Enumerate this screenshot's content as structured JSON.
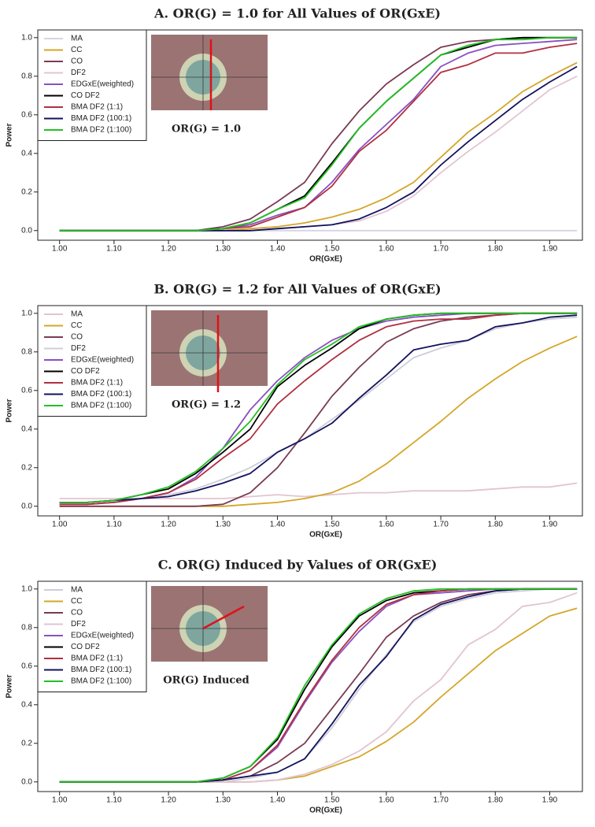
{
  "chart_data": [
    {
      "type": "line",
      "title": "A. OR(G) = 1.0 for All Values of OR(GxE)",
      "inset_label": "OR(G) = 1.0",
      "x_label": "OR(GxE)",
      "y_label": "Power",
      "x": [
        1.0,
        1.05,
        1.1,
        1.15,
        1.2,
        1.25,
        1.3,
        1.35,
        1.4,
        1.45,
        1.5,
        1.55,
        1.6,
        1.65,
        1.7,
        1.75,
        1.8,
        1.85,
        1.9,
        1.95
      ],
      "xlim": [
        0.96,
        1.96
      ],
      "ylim": [
        -0.05,
        1.04
      ],
      "xticks": [
        {
          "value": 1.0,
          "label": "1.00"
        },
        {
          "value": 1.1,
          "label": "1.10"
        },
        {
          "value": 1.2,
          "label": "1.20"
        },
        {
          "value": 1.3,
          "label": "1.30"
        },
        {
          "value": 1.4,
          "label": "1.40"
        },
        {
          "value": 1.5,
          "label": "1.50"
        },
        {
          "value": 1.6,
          "label": "1.60"
        },
        {
          "value": 1.7,
          "label": "1.70"
        },
        {
          "value": 1.8,
          "label": "1.80"
        },
        {
          "value": 1.9,
          "label": "1.90"
        }
      ],
      "yticks": [
        {
          "value": 0,
          "label": "0.0"
        },
        {
          "value": 0.2,
          "label": "0.2"
        },
        {
          "value": 0.4,
          "label": "0.4"
        },
        {
          "value": 0.6,
          "label": "0.6"
        },
        {
          "value": 0.8,
          "label": "0.8"
        },
        {
          "value": 1,
          "label": "1.0"
        }
      ],
      "legend": "top-left",
      "series": [
        {
          "name": "MA",
          "color": "#d6d4e4",
          "values": [
            0,
            0,
            0,
            0,
            0,
            0,
            0,
            0,
            0,
            0,
            0,
            0,
            0,
            0,
            0,
            0,
            0,
            0,
            0,
            0
          ]
        },
        {
          "name": "CC",
          "color": "#d4a628",
          "values": [
            0,
            0,
            0,
            0,
            0,
            0,
            0,
            0.01,
            0.02,
            0.04,
            0.07,
            0.11,
            0.17,
            0.25,
            0.38,
            0.51,
            0.61,
            0.72,
            0.8,
            0.87
          ]
        },
        {
          "name": "CO",
          "color": "#7a3a55",
          "values": [
            0,
            0,
            0,
            0,
            0,
            0,
            0.02,
            0.06,
            0.15,
            0.25,
            0.45,
            0.62,
            0.76,
            0.86,
            0.95,
            0.98,
            0.99,
            1,
            1,
            1
          ]
        },
        {
          "name": "DF2",
          "color": "#e2c4d2",
          "values": [
            0,
            0,
            0,
            0,
            0,
            0,
            0,
            0,
            0.01,
            0.02,
            0.03,
            0.05,
            0.1,
            0.18,
            0.3,
            0.41,
            0.51,
            0.62,
            0.73,
            0.8
          ]
        },
        {
          "name": "EDGxE(weighted)",
          "color": "#8a50c0",
          "values": [
            0,
            0,
            0,
            0,
            0,
            0,
            0.01,
            0.03,
            0.08,
            0.12,
            0.25,
            0.42,
            0.55,
            0.68,
            0.85,
            0.92,
            0.96,
            0.97,
            0.98,
            0.99
          ]
        },
        {
          "name": "CO DF2",
          "color": "#000000",
          "values": [
            0,
            0,
            0,
            0,
            0,
            0,
            0.01,
            0.04,
            0.11,
            0.18,
            0.35,
            0.53,
            0.67,
            0.79,
            0.91,
            0.95,
            0.99,
            1,
            1,
            1
          ]
        },
        {
          "name": "BMA DF2 (1:1)",
          "color": "#b03040",
          "values": [
            0,
            0,
            0,
            0,
            0,
            0,
            0.01,
            0.02,
            0.07,
            0.12,
            0.23,
            0.41,
            0.52,
            0.67,
            0.82,
            0.86,
            0.92,
            0.92,
            0.95,
            0.97
          ]
        },
        {
          "name": "BMA DF2 (100:1)",
          "color": "#12125e",
          "values": [
            0,
            0,
            0,
            0,
            0,
            0,
            0,
            0,
            0.01,
            0.02,
            0.03,
            0.06,
            0.12,
            0.2,
            0.34,
            0.46,
            0.57,
            0.68,
            0.77,
            0.85
          ]
        },
        {
          "name": "BMA DF2 (1:100)",
          "color": "#22c022",
          "values": [
            0,
            0,
            0,
            0,
            0,
            0,
            0.01,
            0.04,
            0.11,
            0.17,
            0.34,
            0.53,
            0.67,
            0.79,
            0.91,
            0.96,
            0.99,
            0.99,
            1,
            1
          ]
        }
      ]
    },
    {
      "type": "line",
      "title": "B. OR(G) = 1.2 for All Values of OR(GxE)",
      "inset_label": "OR(G) = 1.2",
      "x_label": "OR(GxE)",
      "y_label": "Power",
      "x": [
        1.0,
        1.05,
        1.1,
        1.15,
        1.2,
        1.25,
        1.3,
        1.35,
        1.4,
        1.45,
        1.5,
        1.55,
        1.6,
        1.65,
        1.7,
        1.75,
        1.8,
        1.85,
        1.9,
        1.95
      ],
      "xlim": [
        0.96,
        1.96
      ],
      "ylim": [
        -0.05,
        1.04
      ],
      "xticks": [
        {
          "value": 1.0,
          "label": "1.00"
        },
        {
          "value": 1.1,
          "label": "1.10"
        },
        {
          "value": 1.2,
          "label": "1.20"
        },
        {
          "value": 1.3,
          "label": "1.30"
        },
        {
          "value": 1.4,
          "label": "1.40"
        },
        {
          "value": 1.5,
          "label": "1.50"
        },
        {
          "value": 1.6,
          "label": "1.60"
        },
        {
          "value": 1.7,
          "label": "1.70"
        },
        {
          "value": 1.8,
          "label": "1.80"
        },
        {
          "value": 1.9,
          "label": "1.90"
        }
      ],
      "yticks": [
        {
          "value": 0,
          "label": "0.0"
        },
        {
          "value": 0.2,
          "label": "0.2"
        },
        {
          "value": 0.4,
          "label": "0.4"
        },
        {
          "value": 0.6,
          "label": "0.6"
        },
        {
          "value": 0.8,
          "label": "0.8"
        },
        {
          "value": 1,
          "label": "1.0"
        }
      ],
      "legend": "top-left",
      "series": [
        {
          "name": "MA",
          "color": "#e2c4d2",
          "values": [
            0.04,
            0.04,
            0.04,
            0.04,
            0.04,
            0.04,
            0.04,
            0.05,
            0.06,
            0.05,
            0.06,
            0.07,
            0.07,
            0.08,
            0.08,
            0.08,
            0.09,
            0.1,
            0.1,
            0.12
          ]
        },
        {
          "name": "CC",
          "color": "#d4a628",
          "values": [
            0,
            0,
            0,
            0,
            0,
            0,
            0,
            0.01,
            0.02,
            0.04,
            0.07,
            0.13,
            0.22,
            0.33,
            0.44,
            0.56,
            0.66,
            0.75,
            0.82,
            0.88
          ]
        },
        {
          "name": "CO",
          "color": "#7a3a55",
          "values": [
            0,
            0,
            0,
            0,
            0,
            0,
            0.01,
            0.07,
            0.2,
            0.38,
            0.57,
            0.72,
            0.85,
            0.92,
            0.96,
            0.98,
            0.99,
            1,
            1,
            1
          ]
        },
        {
          "name": "DF2",
          "color": "#cfcdd8",
          "values": [
            0.02,
            0.02,
            0.03,
            0.04,
            0.06,
            0.09,
            0.14,
            0.2,
            0.28,
            0.35,
            0.45,
            0.55,
            0.66,
            0.77,
            0.82,
            0.86,
            0.92,
            0.95,
            0.97,
            0.98
          ]
        },
        {
          "name": "EDGxE(weighted)",
          "color": "#8a50c0",
          "values": [
            0.01,
            0.01,
            0.02,
            0.04,
            0.07,
            0.15,
            0.3,
            0.5,
            0.65,
            0.77,
            0.86,
            0.92,
            0.96,
            0.98,
            0.99,
            1,
            1,
            1,
            1,
            1
          ]
        },
        {
          "name": "CO DF2",
          "color": "#000000",
          "values": [
            0.02,
            0.02,
            0.03,
            0.06,
            0.09,
            0.17,
            0.28,
            0.4,
            0.62,
            0.73,
            0.82,
            0.92,
            0.97,
            0.99,
            1,
            1,
            1,
            1,
            1,
            1
          ]
        },
        {
          "name": "BMA DF2 (1:1)",
          "color": "#b03040",
          "values": [
            0.01,
            0.01,
            0.02,
            0.04,
            0.07,
            0.14,
            0.25,
            0.35,
            0.53,
            0.65,
            0.76,
            0.86,
            0.93,
            0.96,
            0.97,
            0.97,
            0.99,
            1,
            1,
            1
          ]
        },
        {
          "name": "BMA DF2 (100:1)",
          "color": "#12125e",
          "values": [
            0.02,
            0.02,
            0.03,
            0.04,
            0.05,
            0.08,
            0.12,
            0.17,
            0.28,
            0.35,
            0.43,
            0.56,
            0.68,
            0.81,
            0.84,
            0.86,
            0.93,
            0.95,
            0.98,
            0.99
          ]
        },
        {
          "name": "BMA DF2 (1:100)",
          "color": "#22c022",
          "values": [
            0.02,
            0.02,
            0.03,
            0.06,
            0.1,
            0.18,
            0.3,
            0.44,
            0.63,
            0.76,
            0.84,
            0.93,
            0.97,
            0.99,
            1,
            1,
            1,
            1,
            1,
            1
          ]
        }
      ]
    },
    {
      "type": "line",
      "title": "C. OR(G) Induced by Values of OR(GxE)",
      "inset_label": "OR(G) Induced",
      "x_label": "OR(GxE)",
      "y_label": "Power",
      "x": [
        1.0,
        1.05,
        1.1,
        1.15,
        1.2,
        1.25,
        1.3,
        1.35,
        1.4,
        1.45,
        1.5,
        1.55,
        1.6,
        1.65,
        1.7,
        1.75,
        1.8,
        1.85,
        1.9,
        1.95
      ],
      "xlim": [
        0.96,
        1.96
      ],
      "ylim": [
        -0.05,
        1.04
      ],
      "xticks": [
        {
          "value": 1.0,
          "label": "1.00"
        },
        {
          "value": 1.1,
          "label": "1.10"
        },
        {
          "value": 1.2,
          "label": "1.20"
        },
        {
          "value": 1.3,
          "label": "1.30"
        },
        {
          "value": 1.4,
          "label": "1.40"
        },
        {
          "value": 1.5,
          "label": "1.50"
        },
        {
          "value": 1.6,
          "label": "1.60"
        },
        {
          "value": 1.7,
          "label": "1.70"
        },
        {
          "value": 1.8,
          "label": "1.80"
        },
        {
          "value": 1.9,
          "label": "1.90"
        }
      ],
      "yticks": [
        {
          "value": 0,
          "label": "0.0"
        },
        {
          "value": 0.2,
          "label": "0.2"
        },
        {
          "value": 0.4,
          "label": "0.4"
        },
        {
          "value": 0.6,
          "label": "0.6"
        },
        {
          "value": 0.8,
          "label": "0.8"
        },
        {
          "value": 1,
          "label": "1.0"
        }
      ],
      "legend": "top-left",
      "series": [
        {
          "name": "MA",
          "color": "#cfcdd8",
          "values": [
            0,
            0,
            0,
            0,
            0,
            0,
            0,
            0.02,
            0.05,
            0.12,
            0.28,
            0.48,
            0.66,
            0.83,
            0.91,
            0.95,
            0.98,
            0.99,
            1,
            1
          ]
        },
        {
          "name": "CC",
          "color": "#d4a628",
          "values": [
            0,
            0,
            0,
            0,
            0,
            0,
            0,
            0,
            0.01,
            0.03,
            0.08,
            0.13,
            0.21,
            0.31,
            0.44,
            0.56,
            0.68,
            0.77,
            0.86,
            0.9
          ]
        },
        {
          "name": "CO",
          "color": "#7a3a55",
          "values": [
            0,
            0,
            0,
            0,
            0,
            0,
            0.01,
            0.03,
            0.1,
            0.2,
            0.38,
            0.56,
            0.75,
            0.86,
            0.93,
            0.97,
            0.99,
            1,
            1,
            1
          ]
        },
        {
          "name": "DF2",
          "color": "#e2c4d2",
          "values": [
            0,
            0,
            0,
            0,
            0,
            0,
            0,
            0,
            0.01,
            0.04,
            0.09,
            0.16,
            0.26,
            0.42,
            0.53,
            0.71,
            0.79,
            0.91,
            0.93,
            0.98
          ]
        },
        {
          "name": "EDGxE(weighted)",
          "color": "#8a50c0",
          "values": [
            0,
            0,
            0,
            0,
            0,
            0,
            0.01,
            0.06,
            0.18,
            0.41,
            0.62,
            0.78,
            0.91,
            0.97,
            0.98,
            0.99,
            1,
            1,
            1,
            1
          ]
        },
        {
          "name": "CO DF2",
          "color": "#000000",
          "values": [
            0,
            0,
            0,
            0,
            0,
            0,
            0.02,
            0.08,
            0.22,
            0.48,
            0.7,
            0.86,
            0.94,
            0.98,
            0.99,
            1,
            1,
            1,
            1,
            1
          ]
        },
        {
          "name": "BMA DF2 (1:1)",
          "color": "#b03040",
          "values": [
            0,
            0,
            0,
            0,
            0,
            0,
            0.01,
            0.06,
            0.19,
            0.42,
            0.63,
            0.8,
            0.92,
            0.97,
            0.99,
            1,
            1,
            1,
            1,
            1
          ]
        },
        {
          "name": "BMA DF2 (100:1)",
          "color": "#12125e",
          "values": [
            0,
            0,
            0,
            0,
            0,
            0,
            0.01,
            0.03,
            0.05,
            0.12,
            0.3,
            0.5,
            0.65,
            0.84,
            0.92,
            0.96,
            0.99,
            1,
            1,
            1
          ]
        },
        {
          "name": "BMA DF2 (1:100)",
          "color": "#22c022",
          "values": [
            0,
            0,
            0,
            0,
            0,
            0,
            0.02,
            0.08,
            0.23,
            0.5,
            0.71,
            0.87,
            0.95,
            0.99,
            1,
            1,
            1,
            1,
            1,
            1
          ]
        }
      ]
    }
  ]
}
